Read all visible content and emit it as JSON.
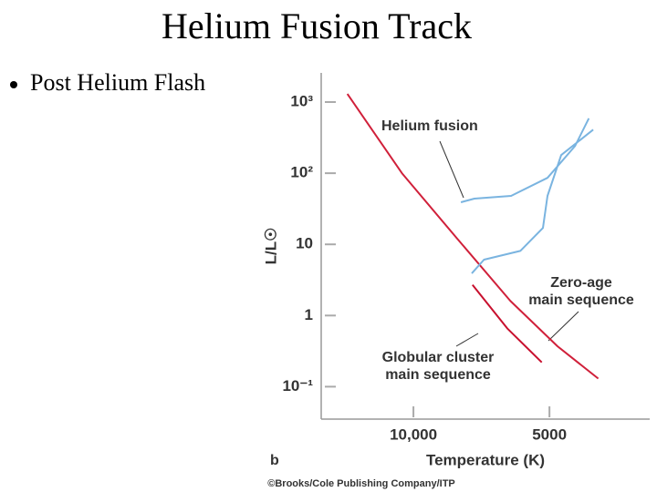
{
  "slide": {
    "title": "Helium Fusion Track",
    "bullet": "Post Helium Flash"
  },
  "chart_data": {
    "type": "line",
    "panel_label": "b",
    "ylabel": "L/L☉",
    "xlabel": "Temperature (K)",
    "credit": "©Brooks/Cole Publishing Company/ITP",
    "xscale": "log",
    "yscale": "log",
    "xlim": [
      16000,
      3000
    ],
    "ylim": [
      2570,
      0.035
    ],
    "xticks": [
      {
        "value": 10000,
        "label": "10,000"
      },
      5000
    ],
    "yticks": [
      {
        "value": 1000,
        "label": "10³"
      },
      {
        "value": 100,
        "label": "10²"
      },
      10,
      1,
      {
        "value": 0.1,
        "label": "10⁻¹"
      }
    ],
    "series": [
      {
        "color": "#d0203a",
        "x": [
          14000,
          10600,
          8000,
          6100,
          4800,
          3900
        ],
        "y": [
          1300,
          100,
          12,
          1.6,
          0.37,
          0.13
        ]
      },
      {
        "color": "#c8102e",
        "x": [
          7400,
          6200,
          5200
        ],
        "y": [
          2.7,
          0.66,
          0.22
        ]
      },
      {
        "color": "#7ab4e0",
        "x": [
          7430,
          6980,
          5800,
          5170,
          5050,
          4710,
          4000,
          null,
          7850,
          7330,
          6080,
          5050,
          4390,
          4090
        ],
        "y": [
          3.9,
          6.1,
          8.1,
          17,
          48,
          180,
          410,
          null,
          39,
          44,
          48,
          86,
          240,
          590
        ]
      }
    ],
    "annotations": [
      {
        "lines": [
          "Helium fusion"
        ]
      },
      {
        "lines": [
          "Zero-age",
          "main sequence"
        ]
      },
      {
        "lines": [
          "Globular cluster",
          "main sequence"
        ]
      }
    ]
  }
}
